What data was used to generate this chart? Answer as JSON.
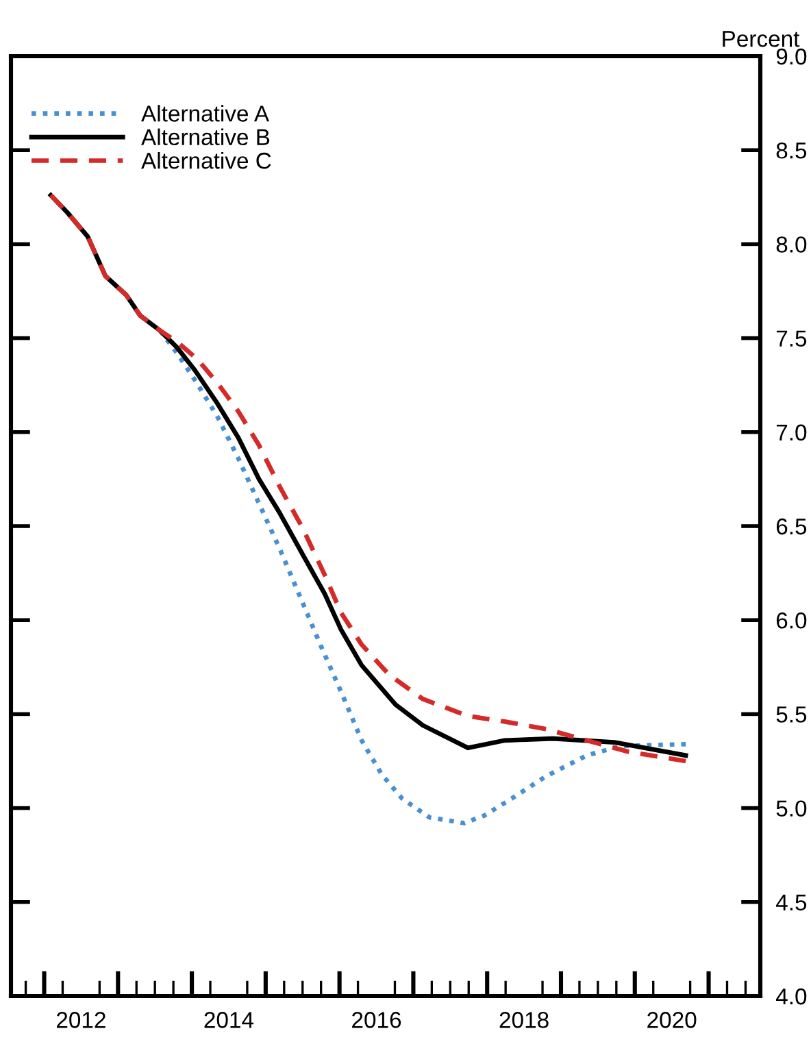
{
  "chart_data": {
    "type": "line",
    "ylabel": "Percent",
    "xlim": [
      2011.55,
      2021.7
    ],
    "ylim": [
      4.0,
      9.0
    ],
    "xticks": [
      {
        "value": 2012.5,
        "label": "2012"
      },
      {
        "value": 2014.5,
        "label": "2014"
      },
      {
        "value": 2016.5,
        "label": "2016"
      },
      {
        "value": 2018.5,
        "label": "2018"
      },
      {
        "value": 2020.5,
        "label": "2020"
      }
    ],
    "yticks": [
      {
        "value": 4.0,
        "label": "4.0"
      },
      {
        "value": 4.5,
        "label": "4.5"
      },
      {
        "value": 5.0,
        "label": "5.0"
      },
      {
        "value": 5.5,
        "label": "5.5"
      },
      {
        "value": 6.0,
        "label": "6.0"
      },
      {
        "value": 6.5,
        "label": "6.5"
      },
      {
        "value": 7.0,
        "label": "7.0"
      },
      {
        "value": 7.5,
        "label": "7.5"
      },
      {
        "value": 8.0,
        "label": "8.0"
      },
      {
        "value": 8.5,
        "label": "8.5"
      },
      {
        "value": 9.0,
        "label": "9.0"
      }
    ],
    "grid": false,
    "legend": "top left",
    "series": [
      {
        "name": "Alternative A",
        "color": "#4a90d0",
        "line_style": "dotted",
        "x": [
          2013.57,
          2013.8,
          2014.07,
          2014.35,
          2014.63,
          2014.91,
          2015.19,
          2015.46,
          2015.74,
          2016.02,
          2016.3,
          2016.57,
          2016.85,
          2017.22,
          2017.69,
          2017.96,
          2018.33,
          2018.8,
          2019.35,
          2019.81,
          2020.69
        ],
        "values": [
          7.54,
          7.42,
          7.26,
          7.08,
          6.86,
          6.62,
          6.38,
          6.13,
          5.87,
          5.62,
          5.36,
          5.18,
          5.05,
          4.95,
          4.92,
          4.96,
          5.05,
          5.17,
          5.28,
          5.33,
          5.34
        ]
      },
      {
        "name": "Alternative B",
        "color": "#000000",
        "line_style": "solid",
        "x": [
          2012.09,
          2012.31,
          2012.59,
          2012.83,
          2013.11,
          2013.3,
          2013.57,
          2013.8,
          2014.04,
          2014.35,
          2014.63,
          2014.91,
          2015.19,
          2015.5,
          2015.8,
          2016.02,
          2016.3,
          2016.76,
          2017.13,
          2017.74,
          2018.24,
          2018.89,
          2019.72,
          2020.69
        ],
        "values": [
          8.26,
          8.17,
          8.04,
          7.83,
          7.73,
          7.62,
          7.54,
          7.45,
          7.33,
          7.15,
          6.97,
          6.75,
          6.57,
          6.35,
          6.14,
          5.95,
          5.76,
          5.55,
          5.44,
          5.32,
          5.36,
          5.37,
          5.35,
          5.28
        ]
      },
      {
        "name": "Alternative C",
        "color": "#d42a2a",
        "line_style": "dashed",
        "x": [
          2012.09,
          2012.31,
          2012.59,
          2012.83,
          2013.11,
          2013.3,
          2013.57,
          2013.8,
          2014.07,
          2014.35,
          2014.63,
          2014.91,
          2015.19,
          2015.5,
          2015.8,
          2016.02,
          2016.3,
          2016.67,
          2017.13,
          2017.74,
          2018.24,
          2018.8,
          2019.35,
          2019.91,
          2020.69
        ],
        "values": [
          8.26,
          8.17,
          8.04,
          7.83,
          7.73,
          7.62,
          7.54,
          7.48,
          7.39,
          7.26,
          7.11,
          6.93,
          6.71,
          6.49,
          6.24,
          6.04,
          5.87,
          5.71,
          5.58,
          5.49,
          5.46,
          5.42,
          5.36,
          5.3,
          5.25
        ]
      }
    ]
  }
}
